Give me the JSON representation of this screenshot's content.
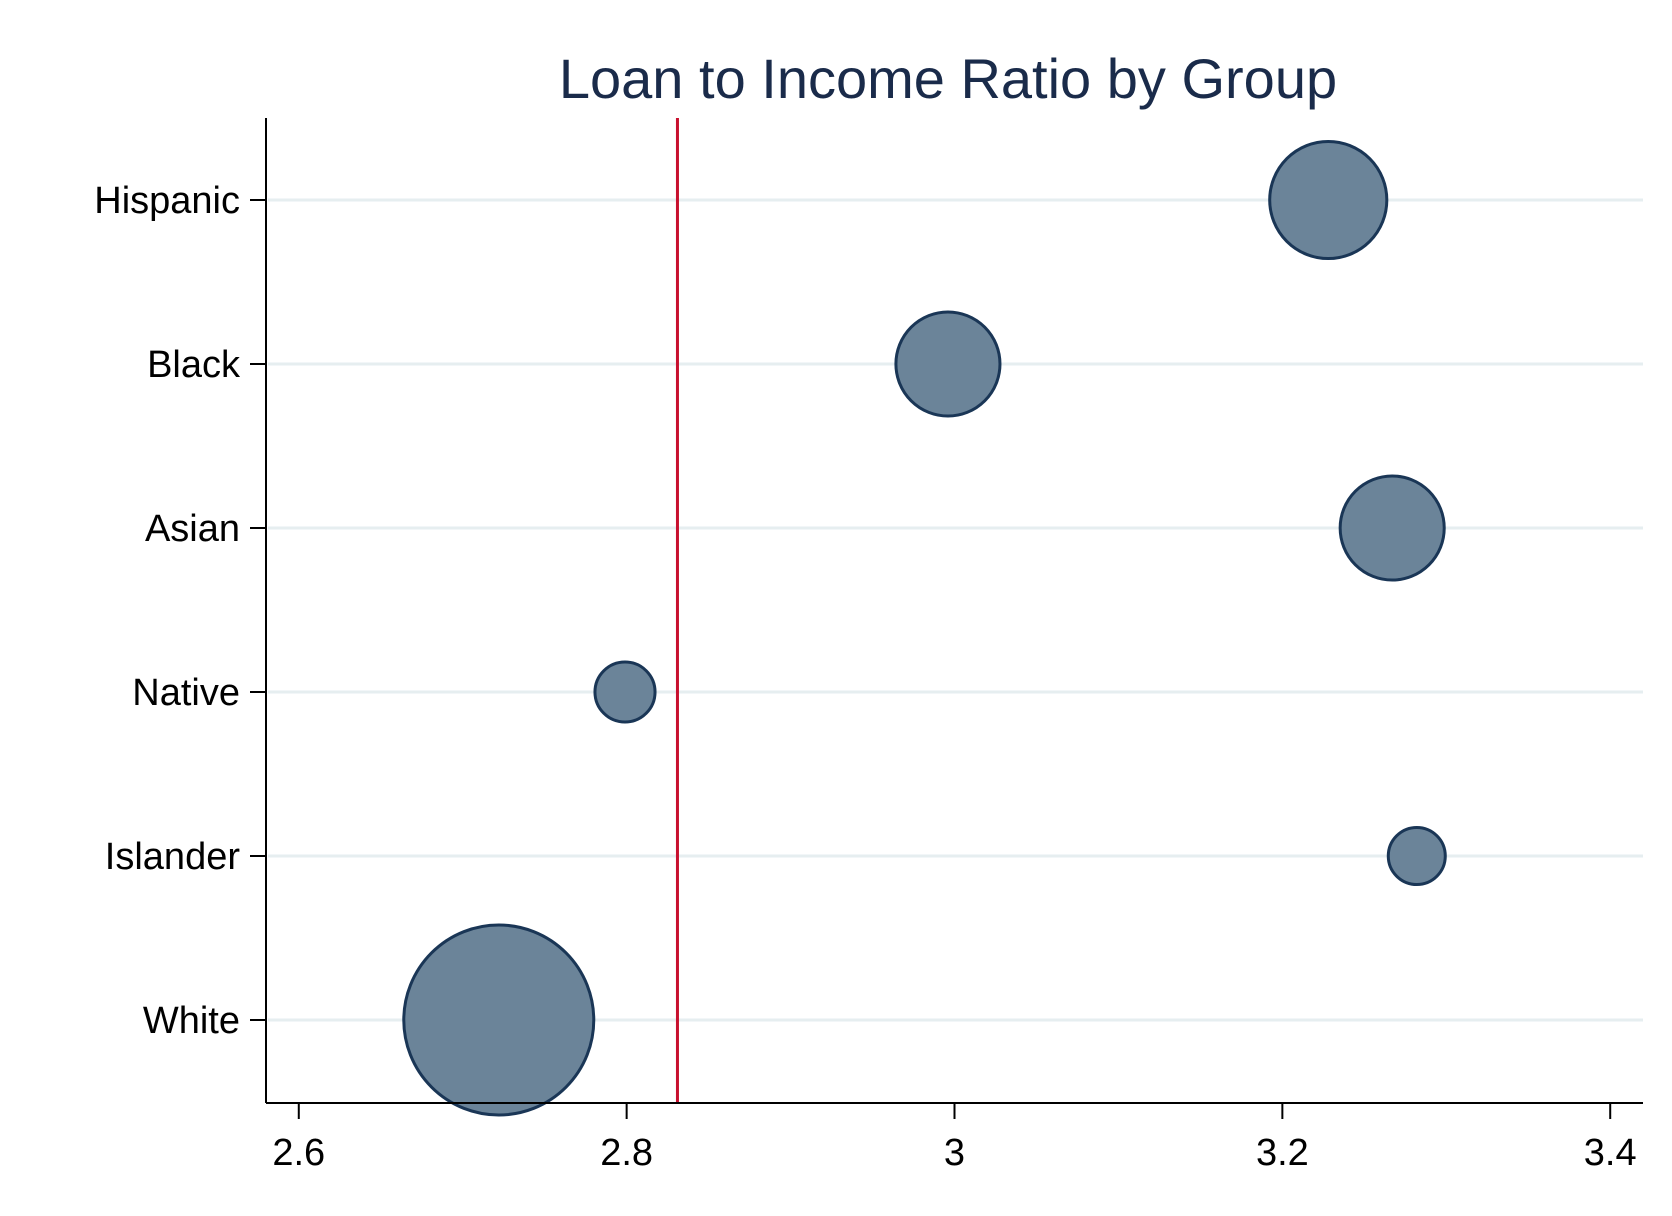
{
  "chart_data": {
    "type": "scatter",
    "title": "Loan to Income Ratio by Group",
    "xlabel": "",
    "ylabel": "",
    "xlim": [
      2.58,
      3.42
    ],
    "xticks": [
      2.6,
      2.8,
      3.0,
      3.2,
      3.4
    ],
    "xtick_labels": [
      "2.6",
      "2.8",
      "3",
      "3.2",
      "3.4"
    ],
    "categories": [
      "Hispanic",
      "Black",
      "Asian",
      "Native",
      "Islander",
      "White"
    ],
    "x": [
      3.228,
      2.996,
      3.267,
      2.799,
      3.282,
      2.722
    ],
    "relative_size": [
      0.38,
      0.3,
      0.3,
      0.1,
      0.09,
      1.0
    ],
    "reference_line_x": 2.831,
    "grid": "horizontal",
    "legend": "none",
    "colors": {
      "marker_fill": "#6b8499",
      "marker_edge": "#1a3656",
      "reference_line": "#c8102e",
      "grid": "#e6eef0",
      "axis": "#000000",
      "title": "#1a2b4a"
    }
  }
}
